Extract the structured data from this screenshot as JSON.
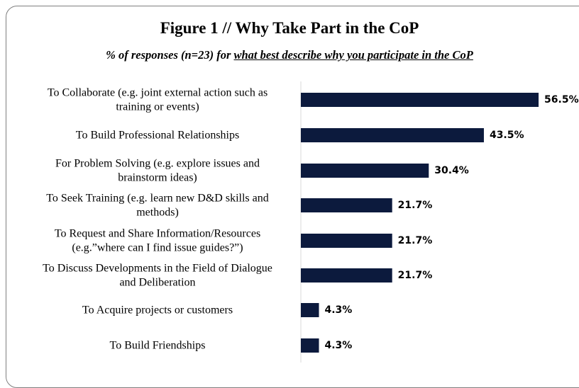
{
  "chart_data": {
    "type": "bar",
    "orientation": "horizontal",
    "title": "Figure 1 // Why Take Part in the CoP",
    "subtitle_prefix": "% of responses (n=23) for ",
    "subtitle_underlined": "what best describe why you participate in the CoP",
    "categories": [
      [
        "To Collaborate (e.g. joint external action such as",
        "training or events)"
      ],
      [
        "To Build Professional Relationships"
      ],
      [
        "For Problem Solving (e.g. explore issues and",
        "brainstorm ideas)"
      ],
      [
        "To Seek Training (e.g. learn new D&D skills and",
        "methods)"
      ],
      [
        "To Request and Share Information/Resources",
        "(e.g.”where can I find issue guides?”)"
      ],
      [
        "To Discuss Developments in the Field of Dialogue",
        "and Deliberation"
      ],
      [
        "To Acquire projects or customers"
      ],
      [
        "To Build Friendships"
      ]
    ],
    "values": [
      56.5,
      43.5,
      30.4,
      21.7,
      21.7,
      21.7,
      4.3,
      4.3
    ],
    "value_labels": [
      "56.5%",
      "43.5%",
      "30.4%",
      "21.7%",
      "21.7%",
      "21.7%",
      "4.3%",
      "4.3%"
    ],
    "xlim": [
      0,
      60
    ],
    "grid": false,
    "legend": "none",
    "bar_color": "#0c1a3d"
  }
}
